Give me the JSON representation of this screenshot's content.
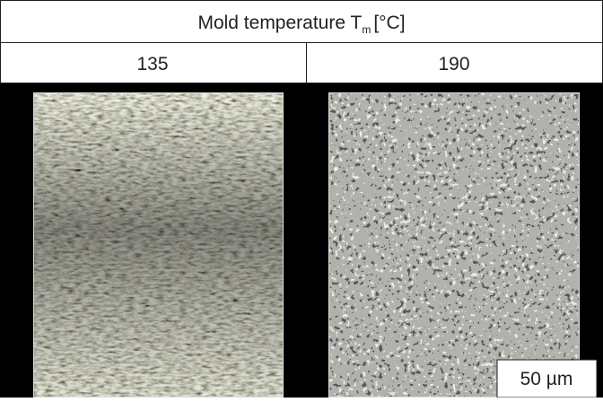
{
  "header": {
    "title": {
      "text": "Mold temperature T",
      "subscript": "m",
      "unit": "[°C]"
    }
  },
  "columns": [
    "135",
    "190"
  ],
  "scale_bar": "50 µm"
}
